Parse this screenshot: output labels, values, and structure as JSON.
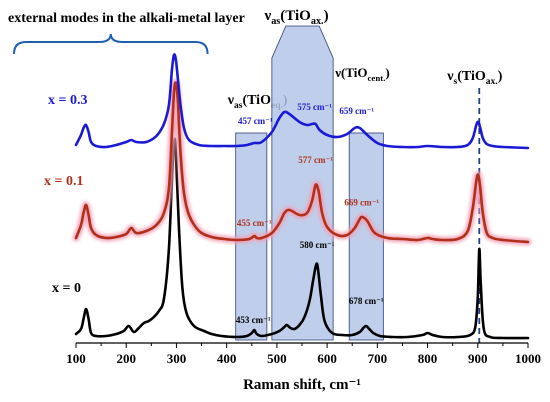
{
  "chart_data": {
    "type": "line",
    "xlabel": "Raman shift, cm⁻¹",
    "xlim": [
      100,
      1000
    ],
    "x_ticks": [
      "100",
      "200",
      "300",
      "400",
      "500",
      "600",
      "700",
      "800",
      "900",
      "1000"
    ],
    "grid": false,
    "series": [
      {
        "name": "x = 0",
        "color": "#000000",
        "glow": null,
        "x": [
          100,
          110,
          115,
          120,
          125,
          130,
          140,
          160,
          180,
          195,
          205,
          215,
          225,
          235,
          245,
          255,
          265,
          275,
          285,
          292,
          297,
          301,
          306,
          312,
          320,
          335,
          355,
          370,
          390,
          420,
          440,
          450,
          455,
          460,
          470,
          490,
          505,
          515,
          520,
          527,
          535,
          545,
          555,
          565,
          572,
          577,
          580,
          583,
          588,
          595,
          610,
          630,
          650,
          665,
          672,
          678,
          684,
          692,
          705,
          730,
          760,
          790,
          800,
          810,
          830,
          860,
          885,
          895,
          900,
          903,
          906,
          912,
          925,
          950,
          1000
        ],
        "y": [
          0.05,
          0.1,
          0.2,
          0.3,
          0.2,
          0.06,
          0.03,
          0.03,
          0.05,
          0.08,
          0.13,
          0.07,
          0.11,
          0.16,
          0.18,
          0.22,
          0.28,
          0.4,
          0.9,
          1.7,
          2.0,
          1.6,
          1.0,
          0.5,
          0.26,
          0.13,
          0.08,
          0.05,
          0.03,
          0.02,
          0.03,
          0.06,
          0.09,
          0.05,
          0.03,
          0.05,
          0.08,
          0.12,
          0.14,
          0.11,
          0.1,
          0.14,
          0.22,
          0.38,
          0.58,
          0.72,
          0.75,
          0.65,
          0.42,
          0.18,
          0.06,
          0.04,
          0.04,
          0.07,
          0.11,
          0.13,
          0.1,
          0.06,
          0.03,
          0.02,
          0.02,
          0.04,
          0.06,
          0.04,
          0.02,
          0.02,
          0.04,
          0.12,
          0.42,
          0.9,
          0.55,
          0.1,
          0.02,
          0.01,
          0.01
        ]
      },
      {
        "name": "x = 0.1",
        "color": "#b0301b",
        "glow": "#f2a0b6",
        "x": [
          100,
          110,
          115,
          120,
          125,
          130,
          140,
          160,
          180,
          200,
          210,
          220,
          240,
          260,
          275,
          285,
          291,
          295,
          299,
          303,
          308,
          315,
          325,
          345,
          370,
          395,
          420,
          445,
          455,
          460,
          470,
          490,
          505,
          515,
          525,
          545,
          560,
          570,
          577,
          583,
          590,
          600,
          620,
          640,
          655,
          665,
          670,
          680,
          695,
          720,
          750,
          780,
          800,
          810,
          830,
          860,
          880,
          890,
          897,
          901,
          905,
          910,
          918,
          930,
          950,
          1000
        ],
        "y": [
          0.05,
          0.18,
          0.3,
          0.38,
          0.28,
          0.15,
          0.08,
          0.05,
          0.06,
          0.09,
          0.15,
          0.1,
          0.12,
          0.18,
          0.3,
          0.55,
          1.1,
          1.5,
          1.6,
          1.4,
          0.9,
          0.5,
          0.28,
          0.12,
          0.06,
          0.04,
          0.03,
          0.04,
          0.07,
          0.05,
          0.05,
          0.1,
          0.2,
          0.3,
          0.33,
          0.28,
          0.3,
          0.42,
          0.58,
          0.52,
          0.3,
          0.16,
          0.08,
          0.08,
          0.15,
          0.24,
          0.26,
          0.22,
          0.1,
          0.05,
          0.04,
          0.03,
          0.05,
          0.04,
          0.03,
          0.04,
          0.12,
          0.35,
          0.62,
          0.68,
          0.55,
          0.3,
          0.1,
          0.05,
          0.03,
          0.01
        ]
      },
      {
        "name": "x = 0.3",
        "color": "#1a1ad6",
        "glow": null,
        "x": [
          100,
          110,
          115,
          120,
          125,
          130,
          140,
          160,
          180,
          200,
          210,
          220,
          240,
          260,
          275,
          285,
          291,
          295,
          299,
          303,
          308,
          315,
          325,
          345,
          370,
          395,
          420,
          440,
          455,
          460,
          470,
          490,
          505,
          515,
          525,
          545,
          560,
          570,
          577,
          585,
          600,
          620,
          640,
          655,
          665,
          680,
          700,
          720,
          750,
          780,
          800,
          830,
          860,
          880,
          890,
          897,
          901,
          905,
          910,
          918,
          930,
          950,
          1000
        ],
        "y": [
          0.05,
          0.15,
          0.22,
          0.25,
          0.18,
          0.08,
          0.04,
          0.03,
          0.05,
          0.08,
          0.1,
          0.08,
          0.08,
          0.14,
          0.26,
          0.45,
          0.8,
          0.95,
          0.9,
          0.7,
          0.45,
          0.22,
          0.1,
          0.05,
          0.04,
          0.04,
          0.04,
          0.05,
          0.07,
          0.07,
          0.08,
          0.18,
          0.32,
          0.38,
          0.36,
          0.28,
          0.25,
          0.26,
          0.26,
          0.2,
          0.15,
          0.13,
          0.16,
          0.22,
          0.22,
          0.15,
          0.07,
          0.04,
          0.03,
          0.03,
          0.04,
          0.03,
          0.03,
          0.05,
          0.12,
          0.25,
          0.28,
          0.22,
          0.12,
          0.06,
          0.04,
          0.03,
          0.02
        ]
      }
    ],
    "series_labels": [
      {
        "text": "x = 0.3",
        "color": "#1a1ad6"
      },
      {
        "text": "x = 0.1",
        "color": "#b0301b"
      },
      {
        "text": "x = 0",
        "color": "#000000"
      }
    ],
    "bands": [
      {
        "label_main": "ν",
        "label_sub": "as",
        "label_paren": "(TiO",
        "label_sub2": "eq.",
        "label_close": ")",
        "x_range": [
          418,
          480
        ],
        "shape": "rect"
      },
      {
        "label_main": "ν",
        "label_sub": "as",
        "label_paren": "(TiO",
        "label_sub2": "ax.",
        "label_close": ")",
        "x_range": [
          490,
          612
        ],
        "shape": "hex"
      },
      {
        "label_main": "ν",
        "label_sub": "",
        "label_paren": "(TiO",
        "label_sub2": "cent.",
        "label_close": ")",
        "x_range": [
          644,
          712
        ],
        "shape": "rect"
      }
    ],
    "band_color": "#b4c6e7",
    "band_stroke": "#2f3e7a",
    "vline": {
      "x": 903,
      "color": "#1f3f8f",
      "label_main": "ν",
      "label_sub": "s",
      "label_paren": "(TiO",
      "label_sub2": "ax.",
      "label_close": ")"
    },
    "peak_labels": [
      {
        "text": "457 cm⁻¹",
        "x": 457,
        "series": 2,
        "color": "#1a1ad6"
      },
      {
        "text": "575 cm⁻¹",
        "x": 575,
        "series": 2,
        "color": "#1a1ad6"
      },
      {
        "text": "659 cm⁻¹",
        "x": 659,
        "series": 2,
        "color": "#1a1ad6"
      },
      {
        "text": "455 cm⁻¹",
        "x": 455,
        "series": 1,
        "color": "#b0301b"
      },
      {
        "text": "577 cm⁻¹",
        "x": 577,
        "series": 1,
        "color": "#b0301b"
      },
      {
        "text": "669 cm⁻¹",
        "x": 669,
        "series": 1,
        "color": "#b0301b"
      },
      {
        "text": "453 cm⁻¹",
        "x": 453,
        "series": 0,
        "color": "#000000"
      },
      {
        "text": "580 cm⁻¹",
        "x": 580,
        "series": 0,
        "color": "#000000"
      },
      {
        "text": "678 cm⁻¹",
        "x": 678,
        "series": 0,
        "color": "#000000"
      }
    ],
    "brace": {
      "text": "external modes in the alkali-metal layer",
      "x_range": [
        100,
        362
      ],
      "color": "#1f5fb3"
    }
  }
}
